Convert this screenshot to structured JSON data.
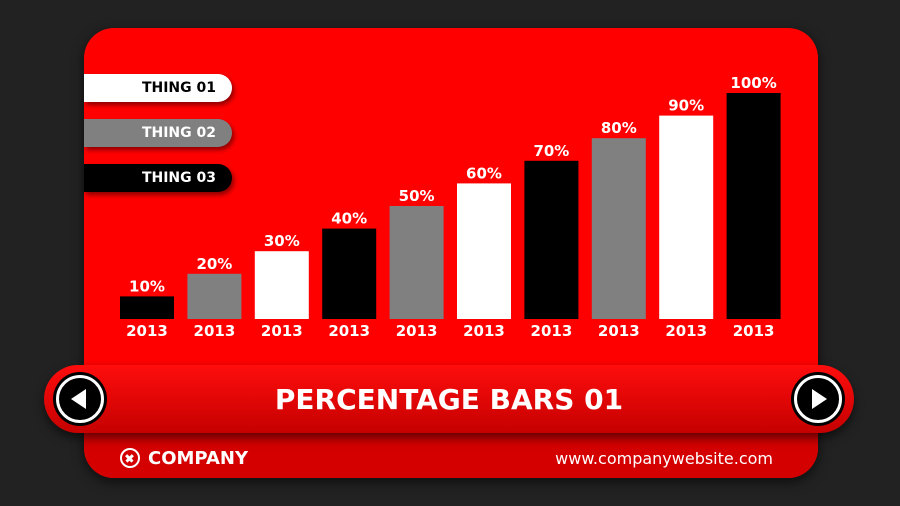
{
  "colors": {
    "background": "#222222",
    "card": "#ff0000",
    "white": "#ffffff",
    "gray": "#808080",
    "black": "#000000"
  },
  "legend": [
    {
      "label": "THING 01",
      "color": "#ffffff",
      "text_color": "#000000"
    },
    {
      "label": "THING 02",
      "color": "#808080",
      "text_color": "#ffffff"
    },
    {
      "label": "THING 03",
      "color": "#000000",
      "text_color": "#ffffff"
    }
  ],
  "chart_data": {
    "type": "bar",
    "categories": [
      "2013",
      "2013",
      "2013",
      "2013",
      "2013",
      "2013",
      "2013",
      "2013",
      "2013",
      "2013"
    ],
    "values": [
      10,
      20,
      30,
      40,
      50,
      60,
      70,
      80,
      90,
      100
    ],
    "value_labels": [
      "10%",
      "20%",
      "30%",
      "40%",
      "50%",
      "60%",
      "70%",
      "80%",
      "90%",
      "100%"
    ],
    "bar_colors": [
      "#000000",
      "#808080",
      "#ffffff",
      "#000000",
      "#808080",
      "#ffffff",
      "#000000",
      "#808080",
      "#ffffff",
      "#000000"
    ],
    "ylim": [
      0,
      100
    ],
    "grid": false,
    "legend_position": "top-left",
    "title": "PERCENTAGE BARS 01"
  },
  "banner": {
    "title": "PERCENTAGE BARS 01",
    "prev_icon": "arrow-left-icon",
    "next_icon": "arrow-right-icon"
  },
  "footer": {
    "company": "COMPANY",
    "company_icon": "close-circle-icon",
    "website": "www.companywebsite.com"
  }
}
